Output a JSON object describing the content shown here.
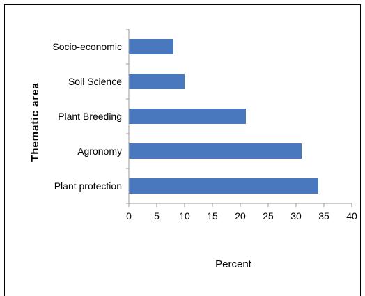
{
  "chart_data": {
    "type": "bar",
    "orientation": "horizontal",
    "categories": [
      "Plant protection",
      "Agronomy",
      "Plant Breeding",
      "Soil Science",
      "Socio-economic"
    ],
    "values": [
      34,
      31,
      21,
      10,
      8
    ],
    "xlabel": "Percent",
    "ylabel": "Thematic area",
    "xlim": [
      0,
      40
    ],
    "xticks": [
      0,
      5,
      10,
      15,
      20,
      25,
      30,
      35,
      40
    ],
    "grid": false,
    "legend": "none",
    "bar_color": "#4a78be"
  }
}
